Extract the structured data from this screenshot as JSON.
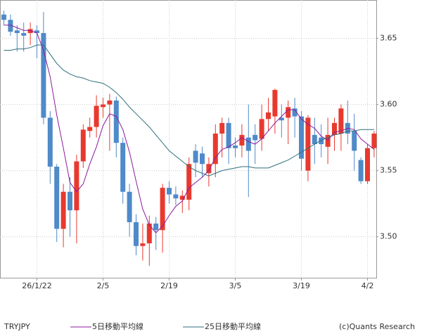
{
  "chart_data": {
    "type": "candlestick",
    "symbol": "TRYJPY",
    "credit": "(c)Quants Research",
    "categories": [
      null,
      null,
      null,
      null,
      null,
      "26/1/22",
      null,
      null,
      null,
      null,
      null,
      null,
      null,
      null,
      null,
      "2/5",
      null,
      null,
      null,
      null,
      null,
      null,
      null,
      null,
      null,
      "2/19",
      null,
      null,
      null,
      null,
      null,
      null,
      null,
      null,
      null,
      "3/5",
      null,
      null,
      null,
      null,
      null,
      null,
      null,
      null,
      null,
      "3/19",
      null,
      null,
      null,
      null,
      null,
      null,
      null,
      null,
      null,
      "4/2",
      null
    ],
    "open": [
      3.668,
      3.664,
      3.656,
      3.654,
      3.654,
      3.656,
      3.654,
      3.59,
      3.553,
      3.506,
      3.534,
      3.52,
      3.557,
      3.58,
      3.583,
      3.598,
      3.6,
      3.603,
      3.571,
      3.534,
      3.511,
      3.493,
      3.495,
      3.51,
      3.505,
      3.537,
      3.532,
      3.528,
      3.528,
      3.565,
      3.563,
      3.548,
      3.555,
      3.578,
      3.586,
      3.569,
      3.569,
      3.575,
      3.577,
      3.574,
      3.589,
      3.591,
      3.59,
      3.59,
      3.597,
      3.591,
      3.55,
      3.577,
      3.575,
      3.568,
      3.577,
      3.578,
      3.586,
      3.58,
      3.558,
      3.542,
      3.567
    ],
    "high": [
      3.671,
      3.668,
      3.66,
      3.662,
      3.662,
      3.66,
      3.67,
      3.595,
      3.555,
      3.54,
      3.545,
      3.562,
      3.585,
      3.59,
      3.607,
      3.605,
      3.608,
      3.606,
      3.575,
      3.54,
      3.517,
      3.51,
      3.516,
      3.515,
      3.54,
      3.542,
      3.538,
      3.535,
      3.56,
      3.57,
      3.568,
      3.56,
      3.585,
      3.59,
      3.59,
      3.575,
      3.585,
      3.6,
      3.585,
      3.6,
      3.605,
      3.612,
      3.6,
      3.603,
      3.605,
      3.595,
      3.592,
      3.59,
      3.585,
      3.59,
      3.59,
      3.6,
      3.603,
      3.593,
      3.56,
      3.57,
      3.58
    ],
    "low": [
      3.66,
      3.652,
      3.64,
      3.64,
      3.645,
      3.635,
      3.585,
      3.54,
      3.496,
      3.492,
      3.5,
      3.495,
      3.552,
      3.575,
      3.575,
      3.59,
      3.565,
      3.56,
      3.525,
      3.5,
      3.486,
      3.482,
      3.478,
      3.49,
      3.488,
      3.525,
      3.524,
      3.518,
      3.52,
      3.545,
      3.545,
      3.538,
      3.545,
      3.56,
      3.555,
      3.56,
      3.56,
      3.53,
      3.555,
      3.565,
      3.58,
      3.578,
      3.575,
      3.57,
      3.575,
      3.55,
      3.542,
      3.555,
      3.56,
      3.555,
      3.565,
      3.565,
      3.57,
      3.55,
      3.54,
      3.54,
      3.56
    ],
    "close": [
      3.664,
      3.655,
      3.654,
      3.652,
      3.657,
      3.654,
      3.59,
      3.553,
      3.506,
      3.534,
      3.52,
      3.557,
      3.581,
      3.583,
      3.599,
      3.6,
      3.603,
      3.571,
      3.534,
      3.511,
      3.493,
      3.495,
      3.51,
      3.505,
      3.537,
      3.532,
      3.529,
      3.531,
      3.555,
      3.556,
      3.555,
      3.555,
      3.578,
      3.586,
      3.567,
      3.567,
      3.577,
      3.565,
      3.573,
      3.589,
      3.594,
      3.611,
      3.588,
      3.598,
      3.591,
      3.559,
      3.59,
      3.57,
      3.57,
      3.577,
      3.586,
      3.597,
      3.578,
      3.565,
      3.542,
      3.567,
      3.578
    ],
    "up_color": "#e8392f",
    "down_color": "#4f8ac9",
    "series": [
      {
        "name": "5日移動平均線",
        "color": "#8b1a9b",
        "values": [
          3.66,
          3.66,
          3.658,
          3.656,
          3.656,
          3.654,
          3.641,
          3.621,
          3.592,
          3.567,
          3.541,
          3.534,
          3.54,
          3.555,
          3.568,
          3.584,
          3.593,
          3.591,
          3.581,
          3.564,
          3.542,
          3.521,
          3.509,
          3.503,
          3.508,
          3.516,
          3.523,
          3.527,
          3.537,
          3.541,
          3.545,
          3.55,
          3.56,
          3.566,
          3.568,
          3.571,
          3.575,
          3.572,
          3.57,
          3.574,
          3.58,
          3.586,
          3.591,
          3.596,
          3.596,
          3.589,
          3.585,
          3.582,
          3.576,
          3.573,
          3.579,
          3.58,
          3.582,
          3.581,
          3.574,
          3.57,
          3.566
        ]
      },
      {
        "name": "25日移動平均線",
        "color": "#2e6f7a",
        "values": [
          3.641,
          3.641,
          3.642,
          3.642,
          3.643,
          3.645,
          3.645,
          3.638,
          3.631,
          3.626,
          3.623,
          3.621,
          3.62,
          3.618,
          3.617,
          3.616,
          3.613,
          3.609,
          3.604,
          3.598,
          3.593,
          3.588,
          3.583,
          3.577,
          3.571,
          3.565,
          3.561,
          3.557,
          3.553,
          3.55,
          3.548,
          3.546,
          3.548,
          3.55,
          3.551,
          3.552,
          3.553,
          3.553,
          3.552,
          3.552,
          3.552,
          3.554,
          3.556,
          3.558,
          3.561,
          3.564,
          3.567,
          3.57,
          3.573,
          3.575,
          3.577,
          3.578,
          3.58,
          3.58,
          3.581,
          3.581,
          3.581
        ]
      }
    ],
    "ylim": [
      3.469,
      3.679
    ],
    "yticks": [
      {
        "value": 3.5,
        "label": "3.50"
      },
      3.55,
      {
        "value": 3.6,
        "label": "3.60"
      },
      3.65
    ],
    "grid": true
  }
}
